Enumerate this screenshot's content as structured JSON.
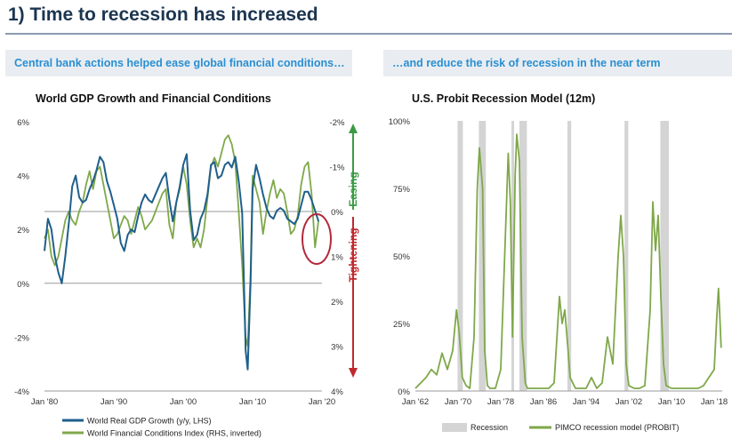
{
  "page": {
    "title": "1) Time to recession has increased"
  },
  "left_panel": {
    "header": "Central bank actions helped ease global financial conditions…",
    "right_axis_labels": {
      "up": "Easing",
      "down": "Tightening"
    }
  },
  "right_panel": {
    "header": "…and reduce the risk of recession in the near term"
  },
  "colors": {
    "gdp": "#1f5f8b",
    "fci": "#7fa84a",
    "probit": "#7fa84a",
    "recession": "#d4d4d4",
    "easing": "#3b9a46",
    "tightening": "#c0282d",
    "highlight": "#b5283b",
    "grid": "#c8c8c8"
  },
  "chart_data": [
    {
      "type": "line",
      "title": "World GDP Growth and Financial Conditions",
      "x_ticks": [
        "Jan '80",
        "Jan '90",
        "Jan '00",
        "Jan '10",
        "Jan '20"
      ],
      "x_range": [
        1980,
        2020
      ],
      "left_axis": {
        "ticks": [
          "6%",
          "4%",
          "2%",
          "0%",
          "-2%",
          "-4%"
        ],
        "ylim": [
          -4,
          6
        ]
      },
      "right_axis": {
        "ticks": [
          "-2%",
          "-1%",
          "0%",
          "1%",
          "2%",
          "3%",
          "4%"
        ],
        "ylim": [
          -2,
          4
        ],
        "inverted": true
      },
      "series": [
        {
          "name": "World Real GDP Growth (y/y, LHS)",
          "axis": "left",
          "points": [
            [
              1980.0,
              1.2
            ],
            [
              1980.5,
              2.4
            ],
            [
              1981.0,
              2.0
            ],
            [
              1981.5,
              1.0
            ],
            [
              1982.0,
              0.4
            ],
            [
              1982.5,
              0.0
            ],
            [
              1983.0,
              1.0
            ],
            [
              1983.5,
              2.2
            ],
            [
              1984.0,
              3.6
            ],
            [
              1984.5,
              4.0
            ],
            [
              1985.0,
              3.2
            ],
            [
              1985.5,
              3.0
            ],
            [
              1986.0,
              3.1
            ],
            [
              1986.5,
              3.5
            ],
            [
              1987.0,
              3.8
            ],
            [
              1987.5,
              4.2
            ],
            [
              1988.0,
              4.7
            ],
            [
              1988.5,
              4.5
            ],
            [
              1989.0,
              3.8
            ],
            [
              1989.5,
              3.4
            ],
            [
              1990.0,
              2.9
            ],
            [
              1990.5,
              2.4
            ],
            [
              1991.0,
              1.5
            ],
            [
              1991.5,
              1.2
            ],
            [
              1992.0,
              1.8
            ],
            [
              1992.5,
              2.0
            ],
            [
              1993.0,
              1.9
            ],
            [
              1993.5,
              2.5
            ],
            [
              1994.0,
              3.0
            ],
            [
              1994.5,
              3.3
            ],
            [
              1995.0,
              3.1
            ],
            [
              1995.5,
              3.0
            ],
            [
              1996.0,
              3.3
            ],
            [
              1996.5,
              3.6
            ],
            [
              1997.0,
              3.9
            ],
            [
              1997.5,
              4.1
            ],
            [
              1998.0,
              3.1
            ],
            [
              1998.5,
              2.3
            ],
            [
              1999.0,
              3.0
            ],
            [
              1999.5,
              3.6
            ],
            [
              2000.0,
              4.4
            ],
            [
              2000.5,
              4.8
            ],
            [
              2001.0,
              2.7
            ],
            [
              2001.5,
              1.6
            ],
            [
              2002.0,
              1.8
            ],
            [
              2002.5,
              2.4
            ],
            [
              2003.0,
              2.7
            ],
            [
              2003.5,
              3.3
            ],
            [
              2004.0,
              4.4
            ],
            [
              2004.5,
              4.5
            ],
            [
              2005.0,
              3.9
            ],
            [
              2005.5,
              4.0
            ],
            [
              2006.0,
              4.4
            ],
            [
              2006.5,
              4.5
            ],
            [
              2007.0,
              4.3
            ],
            [
              2007.5,
              4.7
            ],
            [
              2008.0,
              3.8
            ],
            [
              2008.5,
              2.6
            ],
            [
              2009.0,
              -2.5
            ],
            [
              2009.3,
              -3.2
            ],
            [
              2009.7,
              0.0
            ],
            [
              2010.0,
              3.5
            ],
            [
              2010.5,
              4.4
            ],
            [
              2011.0,
              3.9
            ],
            [
              2011.5,
              3.3
            ],
            [
              2012.0,
              2.8
            ],
            [
              2012.5,
              2.5
            ],
            [
              2013.0,
              2.4
            ],
            [
              2013.5,
              2.7
            ],
            [
              2014.0,
              2.8
            ],
            [
              2014.5,
              2.7
            ],
            [
              2015.0,
              2.4
            ],
            [
              2015.5,
              2.3
            ],
            [
              2016.0,
              2.2
            ],
            [
              2016.5,
              2.4
            ],
            [
              2017.0,
              2.9
            ],
            [
              2017.5,
              3.4
            ],
            [
              2018.0,
              3.4
            ],
            [
              2018.5,
              3.1
            ],
            [
              2019.0,
              2.7
            ],
            [
              2019.5,
              2.3
            ]
          ]
        },
        {
          "name": "World Financial Conditions Index (RHS, inverted)",
          "axis": "right",
          "points": [
            [
              1980.0,
              0.6
            ],
            [
              1980.5,
              0.4
            ],
            [
              1981.0,
              1.0
            ],
            [
              1981.5,
              1.2
            ],
            [
              1982.0,
              1.0
            ],
            [
              1982.5,
              0.6
            ],
            [
              1983.0,
              0.2
            ],
            [
              1983.5,
              0.0
            ],
            [
              1984.0,
              0.2
            ],
            [
              1984.5,
              0.3
            ],
            [
              1985.0,
              0.0
            ],
            [
              1985.5,
              -0.2
            ],
            [
              1986.0,
              -0.6
            ],
            [
              1986.5,
              -0.9
            ],
            [
              1987.0,
              -0.5
            ],
            [
              1987.5,
              -0.9
            ],
            [
              1988.0,
              -1.0
            ],
            [
              1988.5,
              -0.6
            ],
            [
              1989.0,
              -0.2
            ],
            [
              1989.5,
              0.2
            ],
            [
              1990.0,
              0.6
            ],
            [
              1990.5,
              0.5
            ],
            [
              1991.0,
              0.3
            ],
            [
              1991.5,
              0.1
            ],
            [
              1992.0,
              0.2
            ],
            [
              1992.5,
              0.5
            ],
            [
              1993.0,
              0.2
            ],
            [
              1993.5,
              -0.1
            ],
            [
              1994.0,
              0.1
            ],
            [
              1994.5,
              0.4
            ],
            [
              1995.0,
              0.3
            ],
            [
              1995.5,
              0.2
            ],
            [
              1996.0,
              0.0
            ],
            [
              1996.5,
              -0.2
            ],
            [
              1997.0,
              -0.4
            ],
            [
              1997.5,
              -0.5
            ],
            [
              1998.0,
              0.3
            ],
            [
              1998.5,
              0.6
            ],
            [
              1999.0,
              -0.2
            ],
            [
              1999.5,
              -0.5
            ],
            [
              2000.0,
              -1.0
            ],
            [
              2000.5,
              -0.6
            ],
            [
              2001.0,
              0.2
            ],
            [
              2001.5,
              0.8
            ],
            [
              2002.0,
              0.6
            ],
            [
              2002.5,
              0.8
            ],
            [
              2003.0,
              0.4
            ],
            [
              2003.5,
              -0.3
            ],
            [
              2004.0,
              -1.0
            ],
            [
              2004.5,
              -1.2
            ],
            [
              2005.0,
              -1.0
            ],
            [
              2005.5,
              -1.3
            ],
            [
              2006.0,
              -1.6
            ],
            [
              2006.5,
              -1.7
            ],
            [
              2007.0,
              -1.5
            ],
            [
              2007.5,
              -1.1
            ],
            [
              2008.0,
              0.0
            ],
            [
              2008.5,
              1.2
            ],
            [
              2009.0,
              2.8
            ],
            [
              2009.3,
              3.0
            ],
            [
              2009.7,
              1.4
            ],
            [
              2010.0,
              -0.8
            ],
            [
              2010.5,
              -0.5
            ],
            [
              2011.0,
              -0.2
            ],
            [
              2011.5,
              0.5
            ],
            [
              2012.0,
              0.0
            ],
            [
              2012.5,
              -0.4
            ],
            [
              2013.0,
              -0.7
            ],
            [
              2013.5,
              -0.3
            ],
            [
              2014.0,
              -0.5
            ],
            [
              2014.5,
              -0.4
            ],
            [
              2015.0,
              0.0
            ],
            [
              2015.5,
              0.5
            ],
            [
              2016.0,
              0.4
            ],
            [
              2016.5,
              0.1
            ],
            [
              2017.0,
              -0.6
            ],
            [
              2017.5,
              -1.0
            ],
            [
              2018.0,
              -1.1
            ],
            [
              2018.5,
              -0.4
            ],
            [
              2019.0,
              0.8
            ],
            [
              2019.5,
              0.2
            ]
          ]
        }
      ],
      "legend": {
        "position": "bottom-left",
        "entries": [
          "World Real GDP Growth (y/y, LHS)",
          "World Financial Conditions Index (RHS, inverted)"
        ]
      },
      "annotation": "red circle highlighting 2019 tightening"
    },
    {
      "type": "area",
      "title": "U.S. Probit Recession Model (12m)",
      "x_ticks": [
        "Jan '62",
        "Jan '70",
        "Jan '78",
        "Jan '86",
        "Jan '94",
        "Jan '02",
        "Jan '10",
        "Jan '18"
      ],
      "x_range": [
        1962,
        2019.5
      ],
      "y_ticks": [
        "100%",
        "75%",
        "50%",
        "25%",
        "0%"
      ],
      "ylim": [
        0,
        100
      ],
      "recessions": [
        [
          1969.9,
          1970.9
        ],
        [
          1973.9,
          1975.2
        ],
        [
          1980.0,
          1980.5
        ],
        [
          1981.5,
          1982.9
        ],
        [
          1990.5,
          1991.2
        ],
        [
          2001.2,
          2001.9
        ],
        [
          2007.9,
          2009.5
        ]
      ],
      "series": [
        {
          "name": "PIMCO recession model (PROBIT)",
          "points": [
            [
              1962.0,
              1
            ],
            [
              1963.0,
              3
            ],
            [
              1964.0,
              5
            ],
            [
              1965.0,
              8
            ],
            [
              1966.0,
              6
            ],
            [
              1967.0,
              14
            ],
            [
              1968.0,
              8
            ],
            [
              1969.0,
              15
            ],
            [
              1969.7,
              30
            ],
            [
              1970.2,
              22
            ],
            [
              1970.8,
              5
            ],
            [
              1971.5,
              2
            ],
            [
              1972.2,
              1
            ],
            [
              1973.0,
              20
            ],
            [
              1973.6,
              75
            ],
            [
              1974.0,
              90
            ],
            [
              1974.6,
              75
            ],
            [
              1975.0,
              15
            ],
            [
              1975.5,
              2
            ],
            [
              1976.0,
              1
            ],
            [
              1977.0,
              1
            ],
            [
              1978.0,
              8
            ],
            [
              1979.0,
              65
            ],
            [
              1979.4,
              88
            ],
            [
              1979.8,
              70
            ],
            [
              1980.2,
              20
            ],
            [
              1980.7,
              80
            ],
            [
              1981.0,
              95
            ],
            [
              1981.5,
              85
            ],
            [
              1982.0,
              20
            ],
            [
              1982.6,
              3
            ],
            [
              1983.0,
              1
            ],
            [
              1984.0,
              1
            ],
            [
              1985.0,
              1
            ],
            [
              1986.0,
              1
            ],
            [
              1987.0,
              1
            ],
            [
              1988.0,
              3
            ],
            [
              1989.0,
              35
            ],
            [
              1989.5,
              25
            ],
            [
              1990.0,
              30
            ],
            [
              1990.5,
              18
            ],
            [
              1991.0,
              5
            ],
            [
              1992.0,
              1
            ],
            [
              1993.0,
              1
            ],
            [
              1994.0,
              1
            ],
            [
              1995.0,
              5
            ],
            [
              1996.0,
              1
            ],
            [
              1997.0,
              3
            ],
            [
              1998.0,
              20
            ],
            [
              1999.0,
              10
            ],
            [
              2000.0,
              50
            ],
            [
              2000.5,
              65
            ],
            [
              2001.0,
              50
            ],
            [
              2001.5,
              10
            ],
            [
              2002.0,
              2
            ],
            [
              2003.0,
              1
            ],
            [
              2004.0,
              1
            ],
            [
              2005.0,
              2
            ],
            [
              2006.0,
              30
            ],
            [
              2006.5,
              70
            ],
            [
              2007.0,
              52
            ],
            [
              2007.5,
              65
            ],
            [
              2008.0,
              35
            ],
            [
              2008.5,
              10
            ],
            [
              2009.0,
              2
            ],
            [
              2010.0,
              1
            ],
            [
              2011.0,
              1
            ],
            [
              2012.0,
              1
            ],
            [
              2013.0,
              1
            ],
            [
              2014.0,
              1
            ],
            [
              2015.0,
              1
            ],
            [
              2016.0,
              2
            ],
            [
              2017.0,
              5
            ],
            [
              2018.0,
              8
            ],
            [
              2018.5,
              28
            ],
            [
              2018.8,
              38
            ],
            [
              2019.0,
              30
            ],
            [
              2019.3,
              16
            ]
          ]
        }
      ],
      "legend": {
        "position": "bottom",
        "entries": [
          "Recession",
          "PIMCO recession model (PROBIT)"
        ]
      }
    }
  ]
}
